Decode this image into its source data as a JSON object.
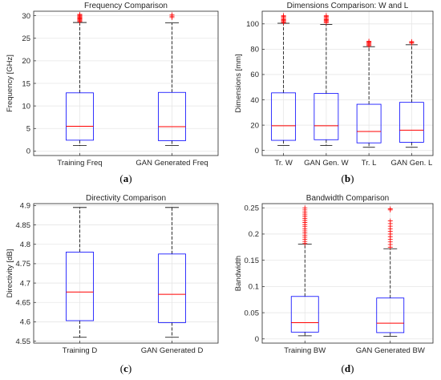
{
  "chart_data": [
    {
      "type": "box",
      "panel_label": "(a)",
      "title": "Frequency Comparison",
      "ylabel": "Frequency [GHz]",
      "xlabel": "",
      "ylim": [
        -1,
        31
      ],
      "yticks": [
        "0",
        "5",
        "10",
        "15",
        "20",
        "25",
        "30"
      ],
      "grid": true,
      "boxes": [
        {
          "category": "Training Freq",
          "lower_whisker": 1.2,
          "q1": 2.4,
          "median": 5.5,
          "q3": 12.9,
          "upper_whisker": 28.5,
          "outliers": [
            28.7,
            28.9,
            29.1,
            29.3,
            29.5,
            29.7,
            29.9,
            30.1,
            30.3
          ]
        },
        {
          "category": "GAN Generated Freq",
          "lower_whisker": 1.2,
          "q1": 2.3,
          "median": 5.4,
          "q3": 13.0,
          "upper_whisker": 28.4,
          "outliers": [
            29.6,
            29.9,
            30.2
          ]
        }
      ]
    },
    {
      "type": "box",
      "panel_label": "(b)",
      "title": "Dimensions Comparison: W and L",
      "ylabel": "Dimensions [mm]",
      "xlabel": "",
      "ylim": [
        -4,
        110
      ],
      "yticks": [
        "0",
        "20",
        "40",
        "60",
        "80",
        "100"
      ],
      "grid": true,
      "boxes": [
        {
          "category": "Tr. W",
          "lower_whisker": 4,
          "q1": 8,
          "median": 19.5,
          "q3": 45.5,
          "upper_whisker": 100.5,
          "outliers": [
            101,
            101.8,
            102.6,
            103.4,
            104.2,
            105,
            105.8,
            106.6
          ]
        },
        {
          "category": "GAN Gen. W",
          "lower_whisker": 4,
          "q1": 8.5,
          "median": 19.5,
          "q3": 45,
          "upper_whisker": 99.5,
          "outliers": [
            101,
            101.8,
            102.6,
            103.4,
            104.2,
            105,
            105.8,
            106.6
          ]
        },
        {
          "category": "Tr. L",
          "lower_whisker": 2.5,
          "q1": 6,
          "median": 15,
          "q3": 36.5,
          "upper_whisker": 82,
          "outliers": [
            82.8,
            83.5,
            84.2,
            84.9,
            85.6,
            86.3
          ]
        },
        {
          "category": "GAN Gen. L",
          "lower_whisker": 2.5,
          "q1": 6.5,
          "median": 16,
          "q3": 38,
          "upper_whisker": 83.5,
          "outliers": [
            84.8,
            85.4,
            86
          ]
        }
      ]
    },
    {
      "type": "box",
      "panel_label": "(c)",
      "title": "Directivity Comparison",
      "ylabel": "Directivity [dB]",
      "xlabel": "",
      "ylim": [
        4.545,
        4.905
      ],
      "yticks": [
        "4.55",
        "4.6",
        "4.65",
        "4.7",
        "4.75",
        "4.8",
        "4.85",
        "4.9"
      ],
      "grid": true,
      "boxes": [
        {
          "category": "Training D",
          "lower_whisker": 4.56,
          "q1": 4.603,
          "median": 4.677,
          "q3": 4.78,
          "upper_whisker": 4.895,
          "outliers": []
        },
        {
          "category": "GAN Generated D",
          "lower_whisker": 4.56,
          "q1": 4.598,
          "median": 4.671,
          "q3": 4.775,
          "upper_whisker": 4.895,
          "outliers": []
        }
      ]
    },
    {
      "type": "box",
      "panel_label": "(d)",
      "title": "Bandwidth Comparison",
      "ylabel": "Bandwidth",
      "xlabel": "",
      "ylim": [
        -0.008,
        0.258
      ],
      "yticks": [
        "0",
        "0.05",
        "0.1",
        "0.15",
        "0.2",
        "0.25"
      ],
      "grid": true,
      "boxes": [
        {
          "category": "Training BW",
          "lower_whisker": 0.006,
          "q1": 0.013,
          "median": 0.031,
          "q3": 0.081,
          "upper_whisker": 0.181,
          "outliers": [
            0.182,
            0.186,
            0.19,
            0.194,
            0.198,
            0.202,
            0.206,
            0.21,
            0.214,
            0.218,
            0.222,
            0.226,
            0.23,
            0.234,
            0.238,
            0.242,
            0.246,
            0.25
          ]
        },
        {
          "category": "GAN Generated BW",
          "lower_whisker": 0.005,
          "q1": 0.012,
          "median": 0.03,
          "q3": 0.078,
          "upper_whisker": 0.172,
          "outliers": [
            0.175,
            0.18,
            0.185,
            0.19,
            0.195,
            0.2,
            0.205,
            0.21,
            0.215,
            0.22,
            0.225,
            0.246,
            0.248
          ]
        }
      ]
    }
  ],
  "colors": {
    "box": "#0000ff",
    "median": "#ff0000",
    "outlier": "#ff0000",
    "whisker": "#000000",
    "grid": "#e6e6e6",
    "axis": "#262626"
  }
}
